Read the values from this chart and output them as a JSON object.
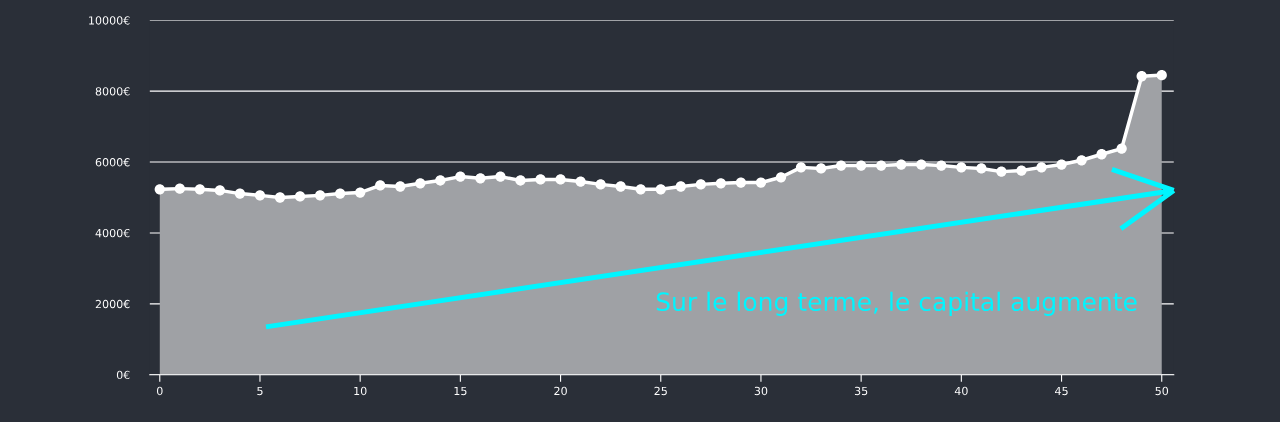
{
  "chart_data": {
    "type": "area",
    "x": [
      0,
      1,
      2,
      3,
      4,
      5,
      6,
      7,
      8,
      9,
      10,
      11,
      12,
      13,
      14,
      15,
      16,
      17,
      18,
      19,
      20,
      21,
      22,
      23,
      24,
      25,
      26,
      27,
      28,
      29,
      30,
      31,
      32,
      33,
      34,
      35,
      36,
      37,
      38,
      39,
      40,
      41,
      42,
      43,
      44,
      45,
      46,
      47,
      48,
      49,
      50
    ],
    "series": [
      {
        "color": "#ffffff",
        "values": [
          5230,
          5250,
          5230,
          5200,
          5110,
          5060,
          5000,
          5030,
          5060,
          5110,
          5140,
          5340,
          5310,
          5400,
          5480,
          5590,
          5540,
          5590,
          5480,
          5510,
          5510,
          5450,
          5370,
          5310,
          5230,
          5230,
          5310,
          5370,
          5400,
          5420,
          5420,
          5570,
          5850,
          5820,
          5900,
          5900,
          5900,
          5930,
          5930,
          5900,
          5850,
          5820,
          5730,
          5760,
          5850,
          5930,
          6050,
          6220,
          6380,
          8420,
          8450
        ]
      }
    ],
    "xlim": [
      -0.5,
      50.6
    ],
    "ylim": [
      0,
      10000
    ],
    "xticks": [
      0,
      5,
      10,
      15,
      20,
      25,
      30,
      35,
      40,
      45,
      50
    ],
    "yticks": [
      {
        "value": 0,
        "label": "0€"
      },
      {
        "value": 2000,
        "label": "2000€"
      },
      {
        "value": 4000,
        "label": "4000€"
      },
      {
        "value": 6000,
        "label": "6000€"
      },
      {
        "value": 8000,
        "label": "8000€"
      },
      {
        "value": 10000,
        "label": "10000€"
      }
    ],
    "grid": "y",
    "marker": "circle",
    "line_style": "solid",
    "legend": false,
    "annotations": [
      "Sur le long terme, le capital augmente"
    ]
  }
}
